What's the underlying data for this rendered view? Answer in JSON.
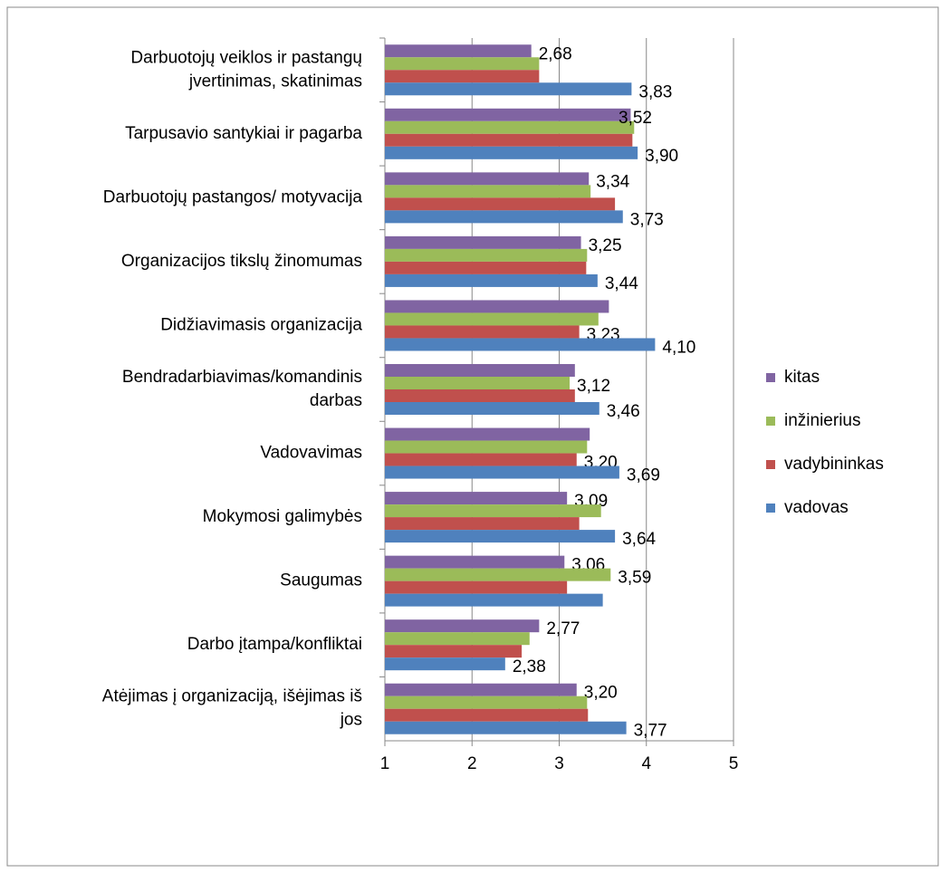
{
  "chart_data": {
    "type": "bar",
    "orientation": "horizontal",
    "categories": [
      "Darbuotojų veiklos ir pastangų\njvertinimas, skatinimas",
      "Tarpusavio santykiai ir pagarba",
      "Darbuotojų pastangos/ motyvacija",
      "Organizacijos tikslų žinomumas",
      "Didžiavimasis organizacija",
      "Bendradarbiavimas/komandinis\ndarbas",
      "Vadovavimas",
      "Mokymosi galimybės",
      "Saugumas",
      "Darbo įtampa/konfliktai",
      "Atėjimas į organizaciją, išėjimas iš\njos"
    ],
    "series": [
      {
        "name": "kitas",
        "color": "#8064a2",
        "values": [
          2.68,
          3.82,
          3.34,
          3.25,
          3.57,
          3.18,
          3.35,
          3.09,
          3.06,
          2.77,
          3.2
        ],
        "value_labels": [
          "2,68",
          null,
          "3,34",
          "3,25",
          null,
          null,
          null,
          "3,09",
          "3,06",
          "2,77",
          "3,20"
        ]
      },
      {
        "name": "inžinierius",
        "color": "#9bbb59",
        "values": [
          2.77,
          3.86,
          3.36,
          3.32,
          3.45,
          3.12,
          3.32,
          3.48,
          3.59,
          2.66,
          3.32
        ],
        "value_labels": [
          null,
          null,
          null,
          null,
          null,
          "3,12",
          null,
          null,
          "3,59",
          null,
          null
        ]
      },
      {
        "name": "vadybininkas",
        "color": "#c0504d",
        "values": [
          2.77,
          3.84,
          3.64,
          3.31,
          3.23,
          3.18,
          3.2,
          3.23,
          3.09,
          2.57,
          3.33
        ],
        "value_labels": [
          null,
          null,
          null,
          null,
          "3,23",
          null,
          "3,20",
          null,
          null,
          null,
          null
        ]
      },
      {
        "name": "vadovas",
        "color": "#4f81bd",
        "values": [
          3.83,
          3.9,
          3.73,
          3.44,
          4.1,
          3.46,
          3.69,
          3.64,
          3.5,
          2.38,
          3.77
        ],
        "value_labels": [
          "3,83",
          "3,90",
          "3,73",
          "3,44",
          "4,10",
          "3,46",
          "3,69",
          "3,64",
          null,
          "2,38",
          "3,77"
        ]
      }
    ],
    "annotations": [
      "3,52"
    ],
    "xlim": [
      1,
      5
    ],
    "xticks": [
      1,
      2,
      3,
      4,
      5
    ],
    "grid": true,
    "legend": "right"
  }
}
